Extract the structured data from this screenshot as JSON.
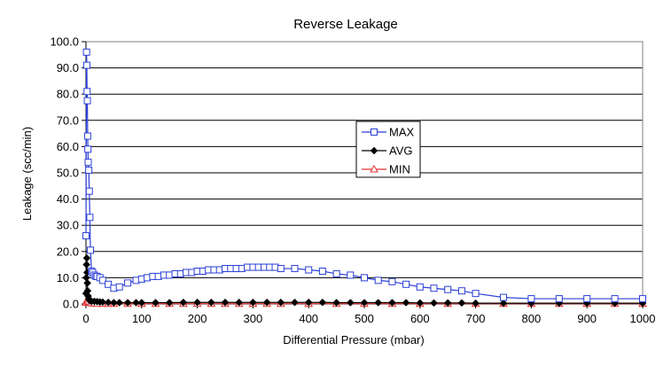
{
  "chart_data": {
    "type": "line",
    "title": "Reverse Leakage",
    "xlabel": "Differential Pressure (mbar)",
    "ylabel": "Leakage (scc/min)",
    "xlim": [
      0,
      1000
    ],
    "ylim": [
      0,
      100
    ],
    "x_ticks": [
      0,
      100,
      200,
      300,
      400,
      500,
      600,
      700,
      800,
      900,
      1000
    ],
    "y_ticks": [
      0,
      10,
      20,
      30,
      40,
      50,
      60,
      70,
      80,
      90,
      100
    ],
    "x_tick_labels": [
      "0",
      "100",
      "200",
      "300",
      "400",
      "500",
      "600",
      "700",
      "800",
      "900",
      "1000"
    ],
    "y_tick_labels": [
      "0.0",
      "10.0",
      "20.0",
      "30.0",
      "40.0",
      "50.0",
      "60.0",
      "70.0",
      "80.0",
      "90.0",
      "100.0"
    ],
    "grid": "horizontal",
    "legend_position": "center-right",
    "colors": {
      "MAX": "#2b3fd6",
      "AVG": "#000000",
      "MIN": "#e03030",
      "grid": "#000000",
      "plot_border": "#808080"
    },
    "series": [
      {
        "name": "MAX",
        "marker": "square",
        "x": [
          0,
          1,
          1.5,
          2,
          2.5,
          3,
          3.5,
          4,
          5,
          6,
          7,
          8,
          10,
          12,
          15,
          18,
          20,
          25,
          30,
          40,
          50,
          60,
          75,
          90,
          100,
          110,
          120,
          130,
          140,
          150,
          160,
          170,
          180,
          190,
          200,
          210,
          220,
          230,
          240,
          250,
          260,
          270,
          280,
          290,
          300,
          310,
          320,
          330,
          340,
          350,
          375,
          400,
          425,
          450,
          475,
          500,
          525,
          550,
          575,
          600,
          625,
          650,
          675,
          700,
          750,
          800,
          850,
          900,
          950,
          1000
        ],
        "y": [
          26,
          96,
          91,
          81,
          77.5,
          64,
          59,
          54,
          51,
          43,
          33,
          20.5,
          12.5,
          12,
          11,
          10.5,
          10.5,
          10,
          9,
          7.5,
          6,
          6.5,
          8,
          9,
          9.5,
          10,
          10.5,
          10.5,
          11,
          11,
          11.5,
          11.5,
          12,
          12,
          12.5,
          12.5,
          13,
          13,
          13,
          13.5,
          13.5,
          13.5,
          13.5,
          14,
          14,
          14,
          14,
          14,
          14,
          13.5,
          13.5,
          13,
          12.5,
          11.5,
          11,
          10,
          9,
          8.5,
          7.5,
          6.5,
          6,
          5.5,
          5,
          4,
          2.5,
          2,
          2,
          2,
          2,
          2
        ]
      },
      {
        "name": "AVG",
        "marker": "diamond",
        "x": [
          0,
          0.5,
          1,
          1.5,
          2,
          2.5,
          3,
          4,
          5,
          6,
          8,
          10,
          15,
          20,
          25,
          30,
          40,
          50,
          60,
          75,
          90,
          100,
          125,
          150,
          175,
          200,
          225,
          250,
          275,
          300,
          325,
          350,
          375,
          400,
          425,
          450,
          475,
          500,
          525,
          550,
          575,
          600,
          625,
          650,
          675,
          700,
          750,
          800,
          850,
          900,
          950,
          1000
        ],
        "y": [
          4,
          10,
          15,
          17.5,
          12,
          8,
          5,
          3,
          2,
          1.5,
          1.2,
          1,
          1,
          0.9,
          0.8,
          0.7,
          0.6,
          0.5,
          0.5,
          0.5,
          0.5,
          0.5,
          0.5,
          0.5,
          0.6,
          0.6,
          0.6,
          0.6,
          0.6,
          0.6,
          0.6,
          0.6,
          0.6,
          0.6,
          0.6,
          0.5,
          0.5,
          0.5,
          0.5,
          0.5,
          0.5,
          0.4,
          0.4,
          0.4,
          0.4,
          0.3,
          0.3,
          0.3,
          0.3,
          0.3,
          0.3,
          0.3
        ]
      },
      {
        "name": "MIN",
        "marker": "triangle",
        "x": [
          0,
          1,
          2,
          3,
          5,
          8,
          10,
          15,
          20,
          30,
          40,
          50,
          75,
          100,
          125,
          150,
          175,
          200,
          225,
          250,
          275,
          300,
          325,
          350,
          400,
          450,
          500,
          550,
          600,
          650,
          700,
          750,
          800,
          850,
          900,
          950,
          1000
        ],
        "y": [
          0.5,
          1,
          1.5,
          1,
          0.8,
          0.5,
          0.3,
          0.2,
          0.1,
          0.1,
          0.1,
          0.1,
          0.1,
          0.1,
          0.1,
          0.1,
          0.1,
          0.1,
          0.1,
          0.1,
          0.1,
          0.1,
          0.1,
          0.1,
          0.1,
          0.1,
          0.1,
          0.1,
          0.1,
          0.1,
          0.1,
          0.1,
          0.1,
          0.1,
          0.1,
          0.1,
          0.1
        ]
      }
    ]
  }
}
